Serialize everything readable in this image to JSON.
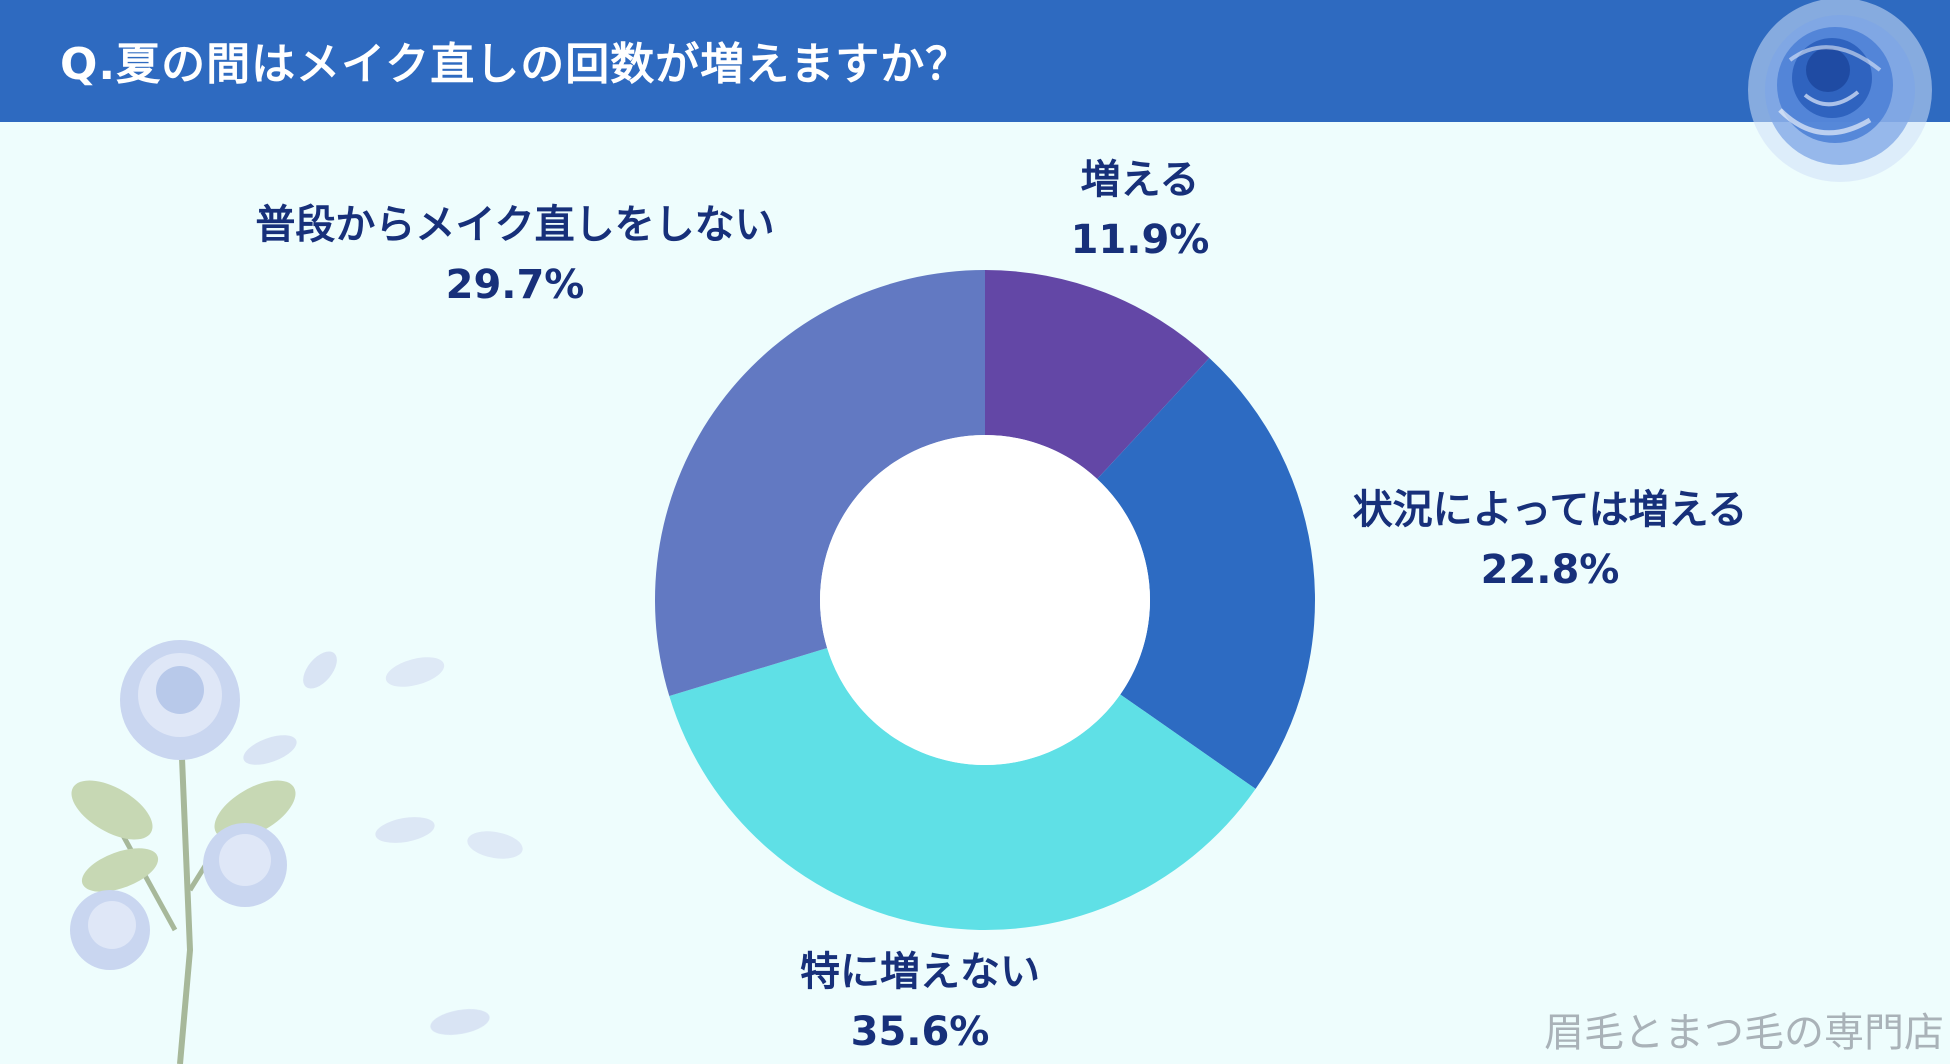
{
  "header": {
    "title": "Q.夏の間はメイク直しの回数が増えますか？"
  },
  "chart_data": {
    "type": "pie",
    "title": "Q.夏の間はメイク直しの回数が増えますか？",
    "slices": [
      {
        "label": "増える",
        "value": 11.9,
        "display": "11.9%",
        "color": "#6347a6"
      },
      {
        "label": "状況によっては増える",
        "value": 22.8,
        "display": "22.8%",
        "color": "#2d6bc2"
      },
      {
        "label": "特に増えない",
        "value": 35.6,
        "display": "35.6%",
        "color": "#5fe0e6"
      },
      {
        "label": "普段からメイク直しをしない",
        "value": 29.7,
        "display": "29.7%",
        "color": "#6279c2"
      }
    ],
    "start_angle": "12 o'clock",
    "direction": "clockwise",
    "donut": true
  },
  "watermark": {
    "text": "眉毛とまつ毛の専門店"
  },
  "colors": {
    "header_bg": "#2e6ac0",
    "page_bg": "#eefdfd",
    "label_text": "#17307a"
  },
  "decorations": [
    "blue-rose-icon",
    "white-rose-branch-icon",
    "petals-icon"
  ]
}
